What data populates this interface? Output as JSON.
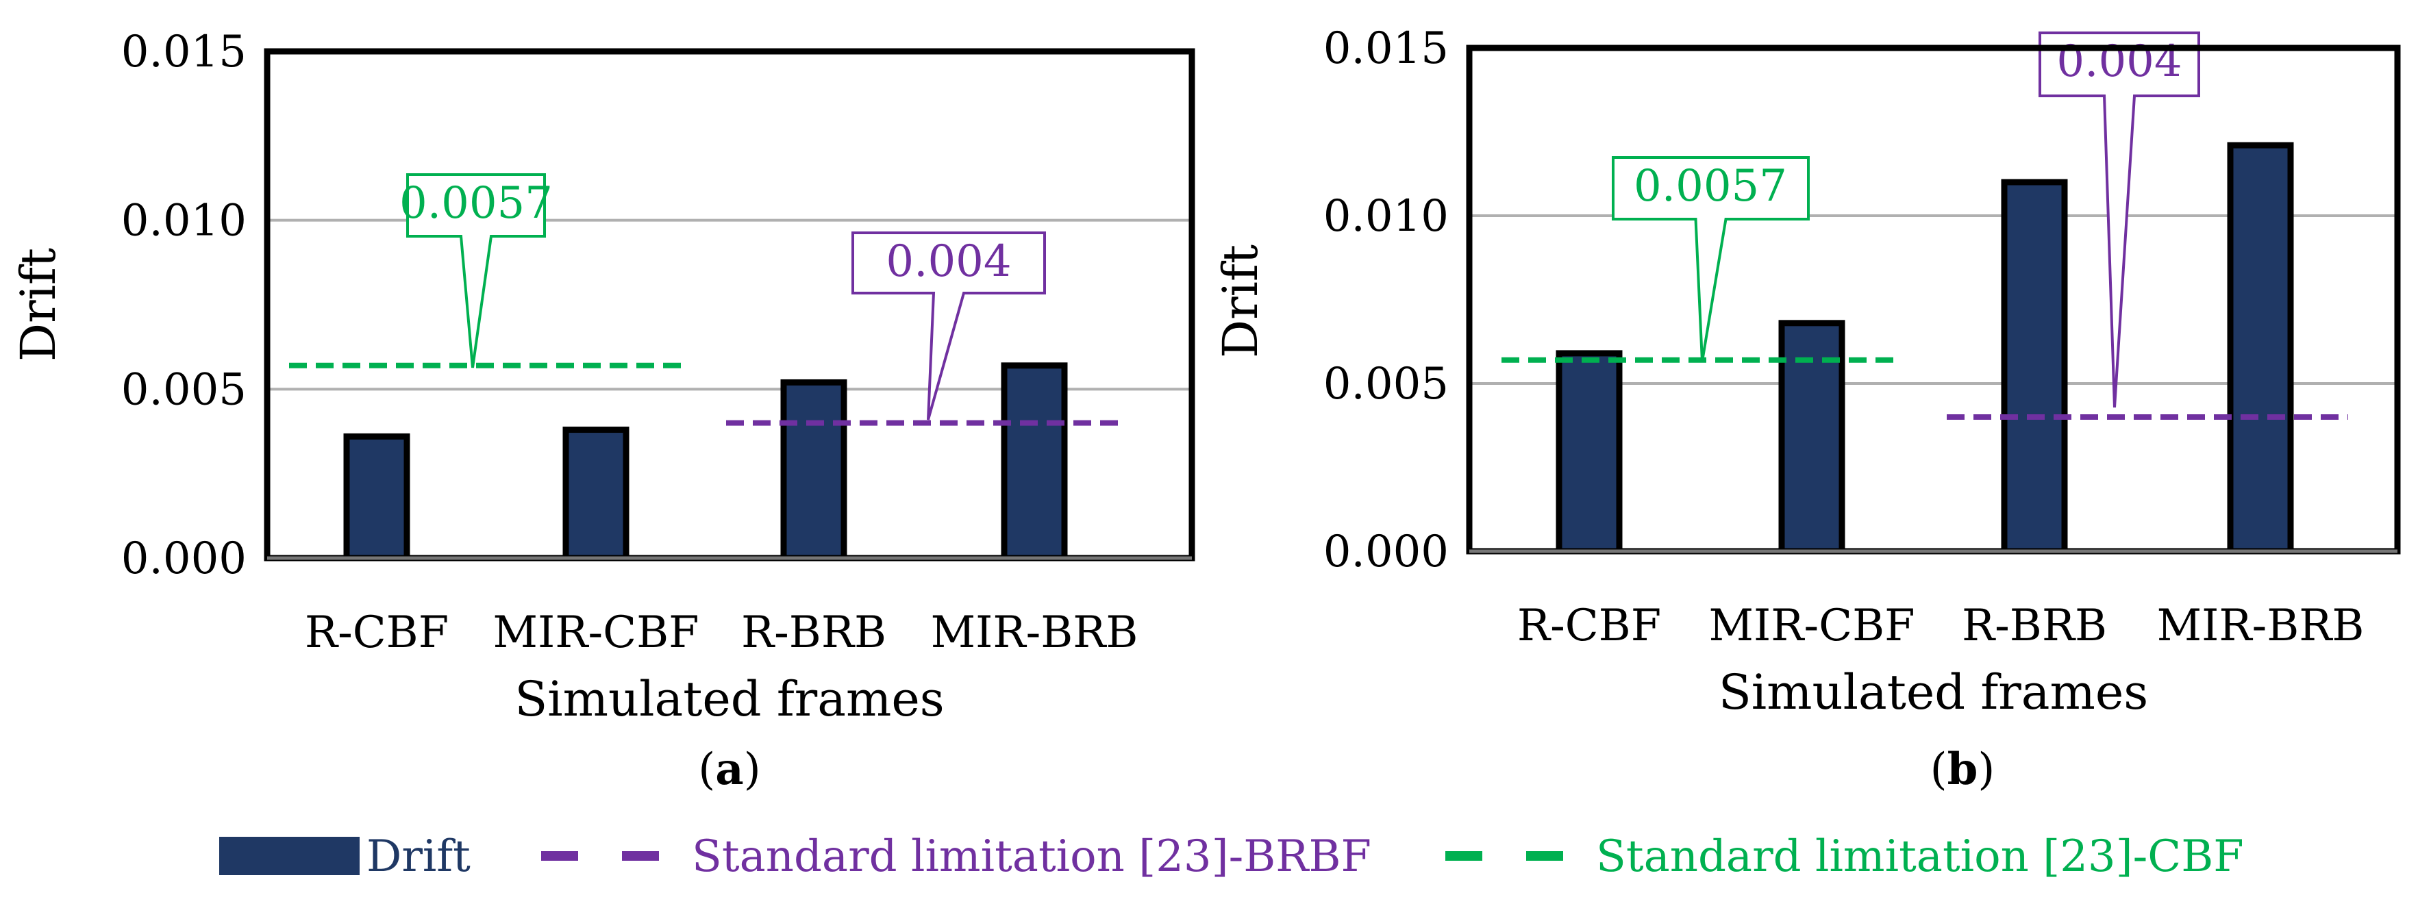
{
  "chart_data": [
    {
      "type": "bar",
      "panel_label": "a",
      "categories": [
        "R-CBF",
        "MIR-CBF",
        "R-BRB",
        "MIR-BRB"
      ],
      "series": [
        {
          "name": "Drift",
          "values": [
            0.0036,
            0.0038,
            0.0052,
            0.0057
          ]
        }
      ],
      "reference_lines": [
        {
          "name": "Standard limitation [23]-CBF",
          "value": 0.0057,
          "label": "0.0057",
          "from_category": 0,
          "to_category": 1
        },
        {
          "name": "Standard limitation [23]-BRBF",
          "value": 0.004,
          "label": "0.004",
          "from_category": 2,
          "to_category": 3
        }
      ],
      "xlabel": "Simulated frames",
      "ylabel": "Drift",
      "ylim": [
        0,
        0.015
      ],
      "yticks": [
        "0.000",
        "0.005",
        "0.010",
        "0.015"
      ],
      "grid": true
    },
    {
      "type": "bar",
      "panel_label": "b",
      "categories": [
        "R-CBF",
        "MIR-CBF",
        "R-BRB",
        "MIR-BRB"
      ],
      "series": [
        {
          "name": "Drift",
          "values": [
            0.0059,
            0.0068,
            0.011,
            0.0121
          ]
        }
      ],
      "reference_lines": [
        {
          "name": "Standard limitation [23]-CBF",
          "value": 0.0057,
          "label": "0.0057",
          "from_category": 0,
          "to_category": 1
        },
        {
          "name": "Standard limitation [23]-BRBF",
          "value": 0.004,
          "label": "0.004",
          "from_category": 2,
          "to_category": 3
        }
      ],
      "xlabel": "Simulated frames",
      "ylabel": "Drift",
      "ylim": [
        0,
        0.015
      ],
      "yticks": [
        "0.000",
        "0.005",
        "0.010",
        "0.015"
      ],
      "grid": true
    }
  ],
  "legend": {
    "items": [
      {
        "label": "Drift",
        "kind": "bar",
        "color": "#1f3864"
      },
      {
        "label": "Standard limitation [23]-BRBF",
        "kind": "dash",
        "color": "#7030a0"
      },
      {
        "label": "Standard limitation [23]-CBF",
        "kind": "dash",
        "color": "#00b050"
      }
    ]
  },
  "colors": {
    "bar": "#1f3864",
    "cbf": "#00b050",
    "brbf": "#7030a0"
  }
}
